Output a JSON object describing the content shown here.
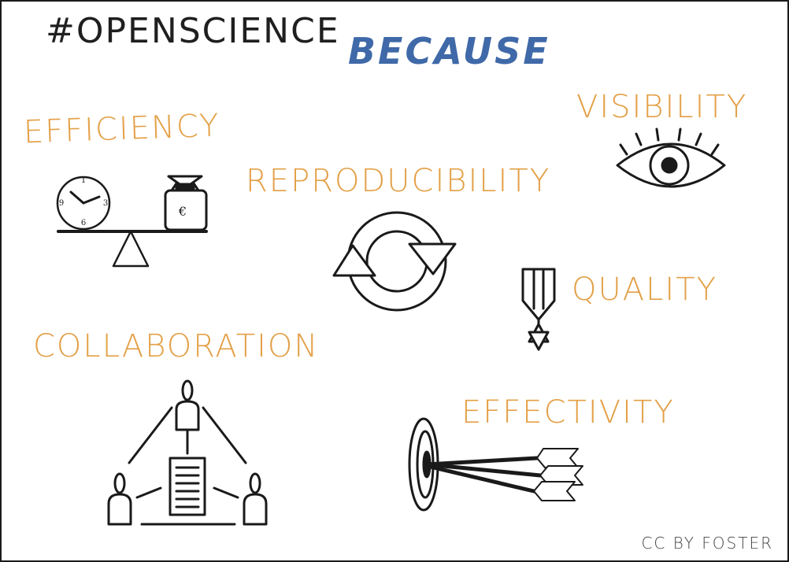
{
  "title": {
    "main": "#OPENSCIENCE",
    "because": "BECAUSE"
  },
  "items": [
    {
      "label": "EFFICIENCY",
      "icon": "scale-clock-money-icon"
    },
    {
      "label": "VISIBILITY",
      "icon": "eye-icon"
    },
    {
      "label": "REPRODUCIBILITY",
      "icon": "cycle-arrows-icon"
    },
    {
      "label": "QUALITY",
      "icon": "medal-icon"
    },
    {
      "label": "COLLABORATION",
      "icon": "network-people-icon"
    },
    {
      "label": "EFFECTIVITY",
      "icon": "target-arrows-icon"
    }
  ],
  "icon_text": {
    "clock_12": "1",
    "clock_3": "3",
    "clock_6": "6",
    "clock_9": "9",
    "currency": "€"
  },
  "credit": "CC BY FOSTER",
  "colors": {
    "accent": "#e3a047",
    "because": "#3f69a8",
    "ink": "#1a1a1a"
  }
}
